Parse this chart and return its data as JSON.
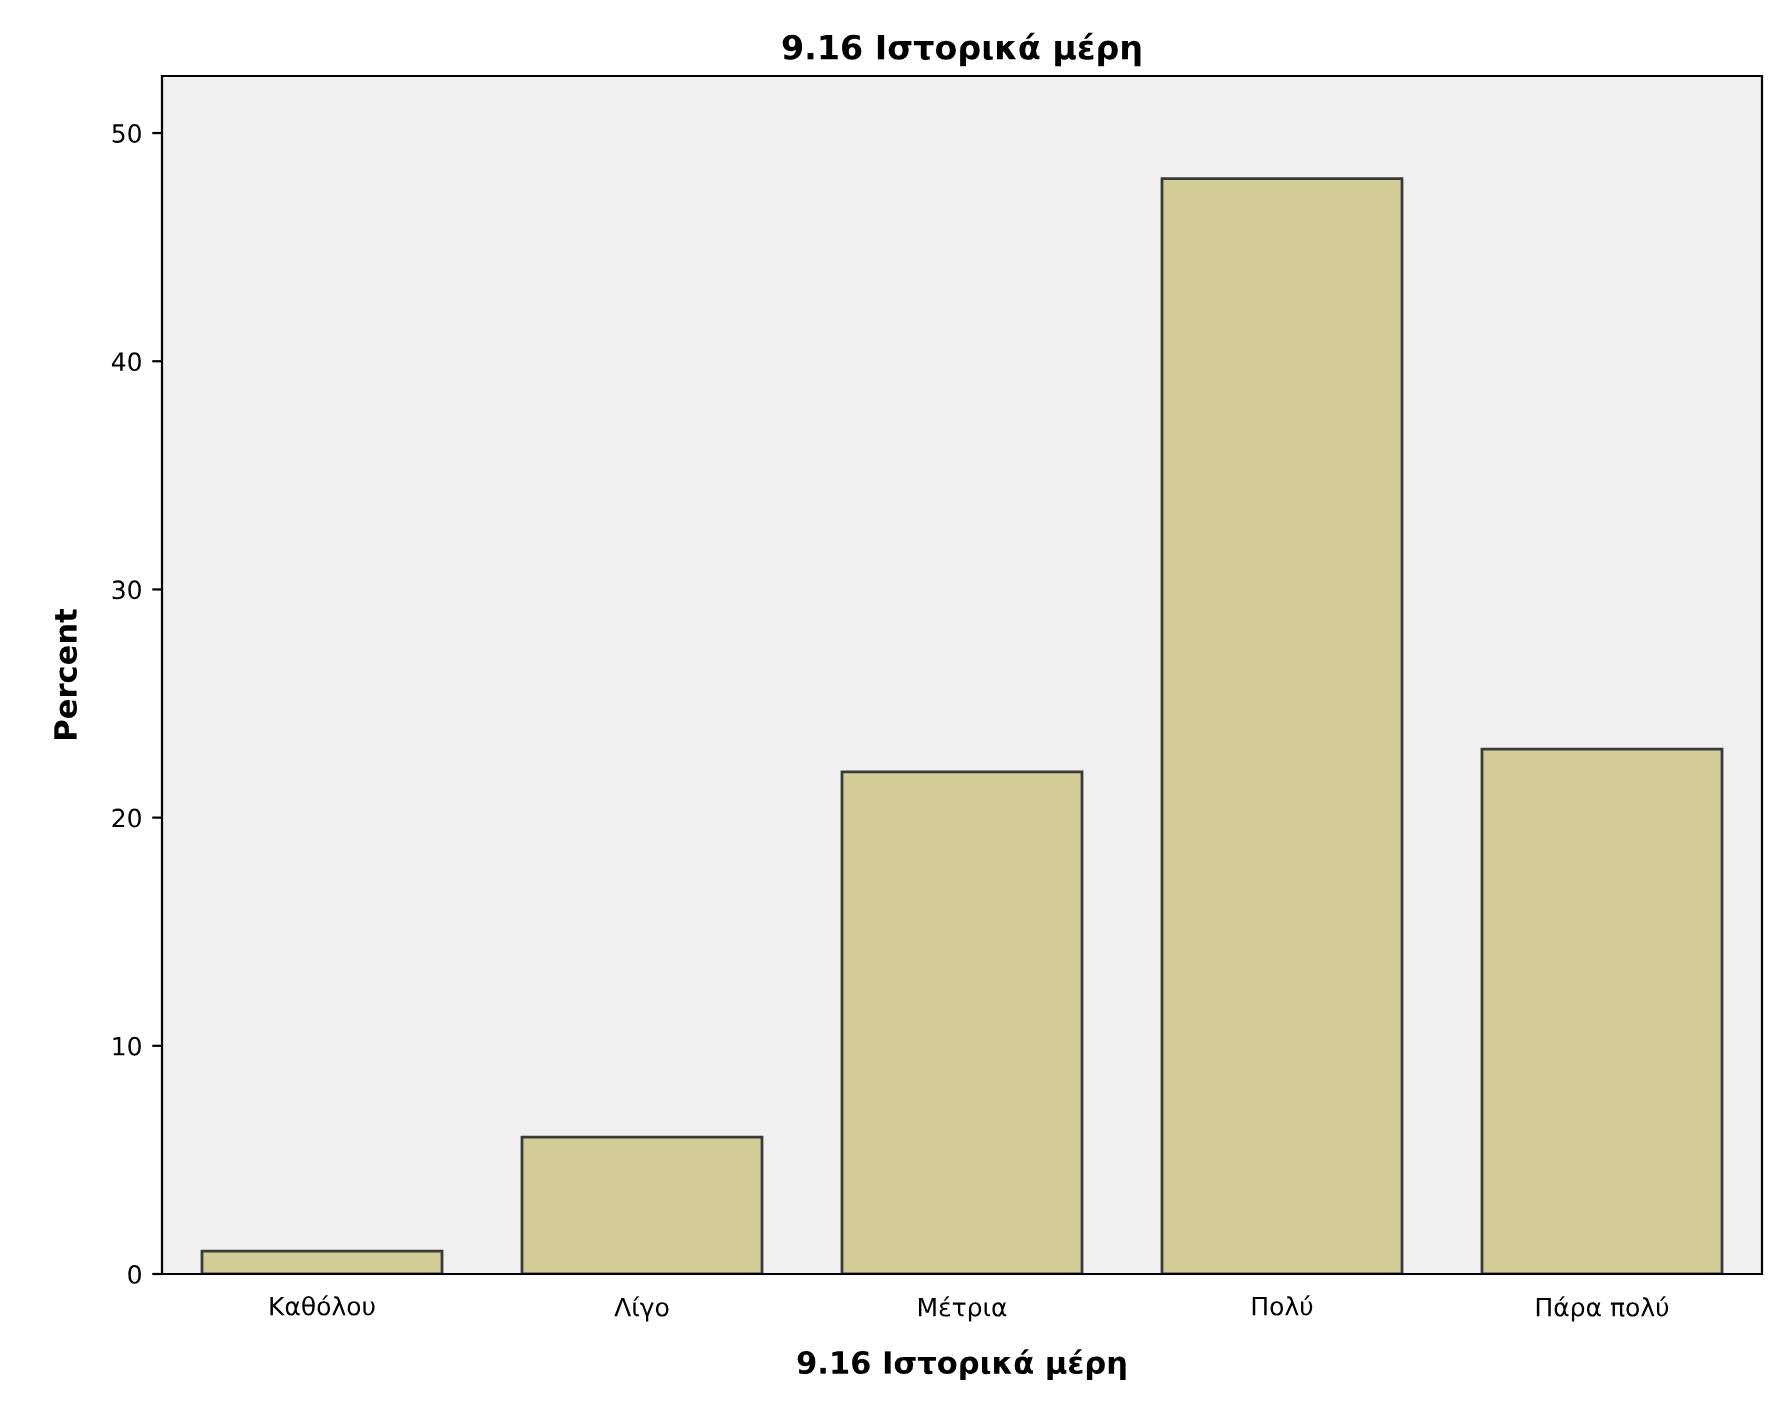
{
  "chart_data": {
    "type": "bar",
    "title": "9.16 Ιστορικά μέρη",
    "xlabel": "9.16 Ιστορικά μέρη",
    "ylabel": "Percent",
    "categories": [
      "Καθόλου",
      "Λίγο",
      "Μέτρια",
      "Πολύ",
      "Πάρα πολύ"
    ],
    "values": [
      1,
      6,
      22,
      48,
      23
    ],
    "color": "#d3ce97",
    "ylim": [
      0,
      52.5
    ],
    "yticks": [
      0,
      10,
      20,
      30,
      40,
      50
    ],
    "grid": false
  }
}
